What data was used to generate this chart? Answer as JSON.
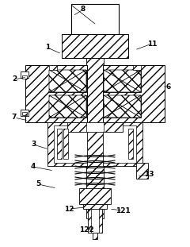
{
  "bg_color": "#ffffff",
  "figsize": [
    2.4,
    3.11
  ],
  "dpi": 100,
  "labels": {
    "8": [
      105,
      12,
      92,
      20
    ],
    "1": [
      60,
      60,
      78,
      68
    ],
    "11": [
      192,
      55,
      170,
      63
    ],
    "2": [
      18,
      100,
      34,
      97
    ],
    "6": [
      213,
      110,
      205,
      108
    ],
    "7": [
      18,
      148,
      36,
      152
    ],
    "3": [
      42,
      182,
      62,
      188
    ],
    "4": [
      42,
      210,
      68,
      215
    ],
    "5": [
      48,
      232,
      72,
      237
    ],
    "13": [
      188,
      220,
      173,
      222
    ],
    "12": [
      87,
      263,
      108,
      261
    ],
    "121": [
      155,
      265,
      138,
      263
    ],
    "122": [
      109,
      290,
      118,
      287
    ]
  }
}
